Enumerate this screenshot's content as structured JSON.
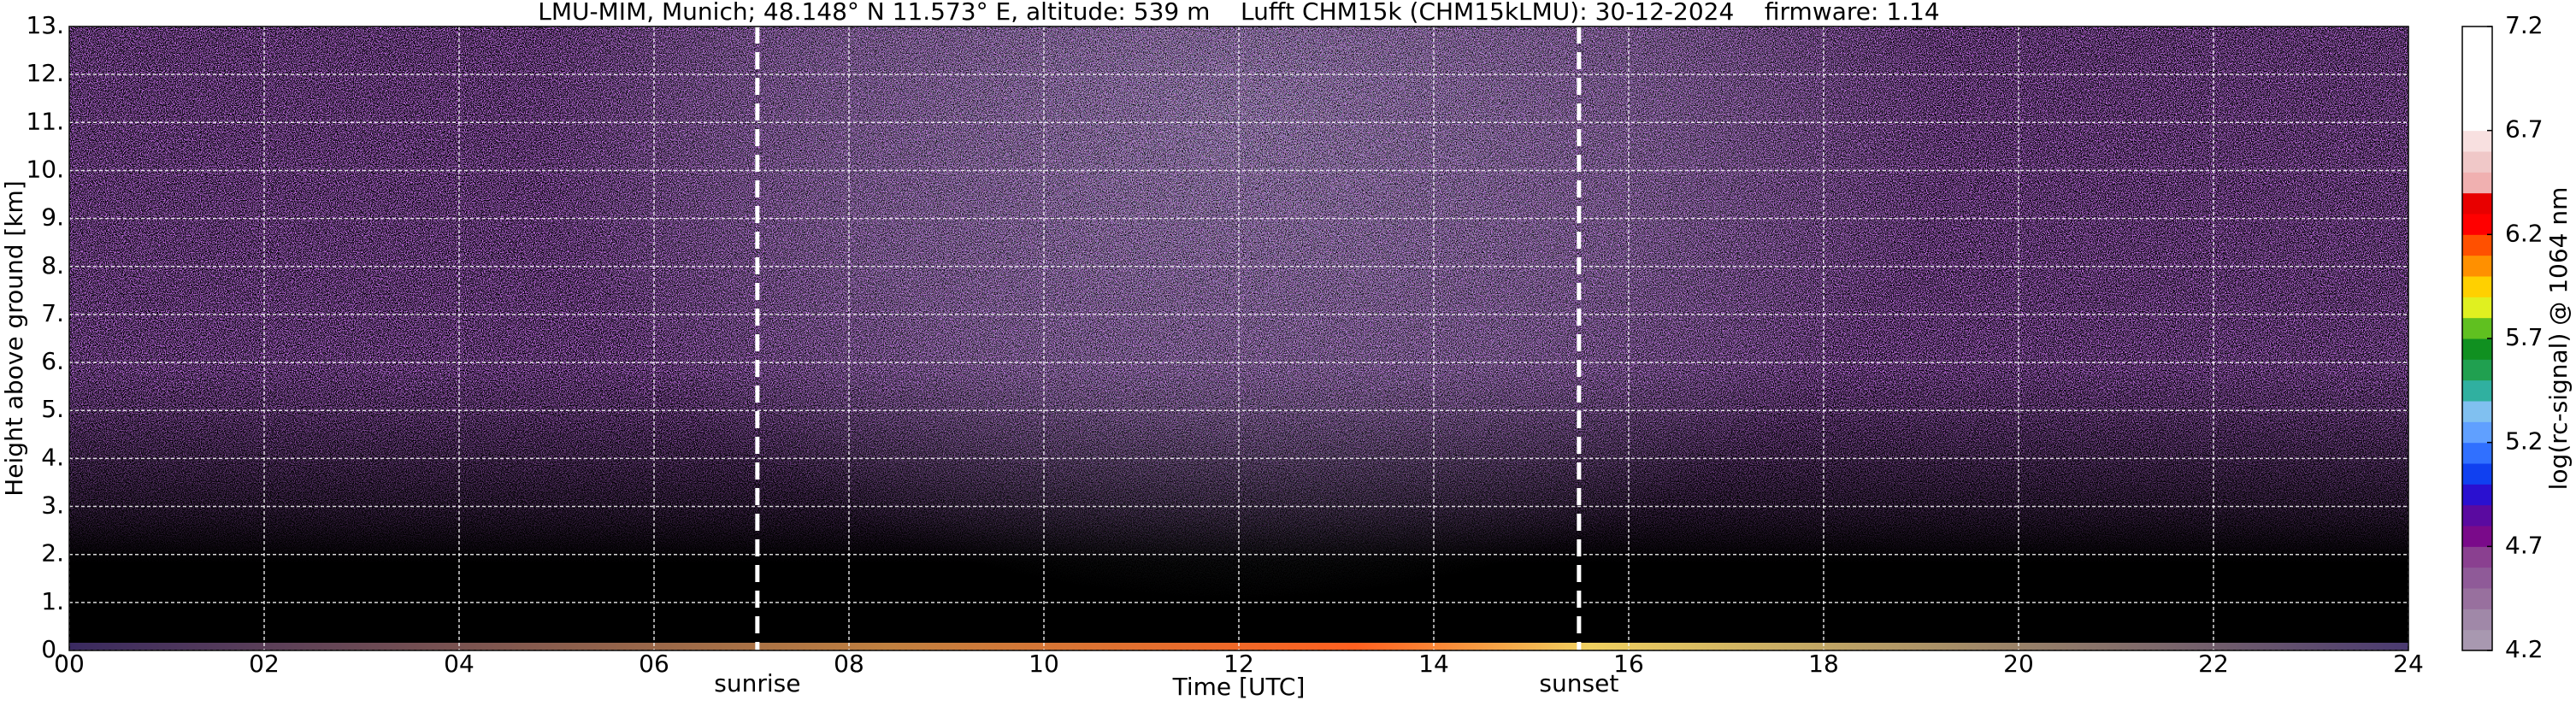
{
  "chart_data": {
    "type": "heatmap",
    "title": "LMU-MIM, Munich; 48.148° N 11.573° E, altitude: 539 m    Lufft CHM15k (CHM15kLMU): 30-12-2024    firmware: 1.14",
    "xlabel": "Time [UTC]",
    "ylabel": "Height above ground [km]",
    "xlim": [
      0,
      24
    ],
    "xticks": [
      {
        "value": 0,
        "label": "00"
      },
      {
        "value": 2,
        "label": "02"
      },
      {
        "value": 4,
        "label": "04"
      },
      {
        "value": 6,
        "label": "06"
      },
      {
        "value": 8,
        "label": "08"
      },
      {
        "value": 10,
        "label": "10"
      },
      {
        "value": 12,
        "label": "12"
      },
      {
        "value": 14,
        "label": "14"
      },
      {
        "value": 16,
        "label": "16"
      },
      {
        "value": 18,
        "label": "18"
      },
      {
        "value": 20,
        "label": "20"
      },
      {
        "value": 22,
        "label": "22"
      },
      {
        "value": 24,
        "label": "24"
      }
    ],
    "ylim": [
      0,
      13
    ],
    "yticks": [
      {
        "value": 0,
        "label": "0."
      },
      {
        "value": 1,
        "label": "1."
      },
      {
        "value": 2,
        "label": "2."
      },
      {
        "value": 3,
        "label": "3."
      },
      {
        "value": 4,
        "label": "4."
      },
      {
        "value": 5,
        "label": "5."
      },
      {
        "value": 6,
        "label": "6."
      },
      {
        "value": 7,
        "label": "7."
      },
      {
        "value": 8,
        "label": "8."
      },
      {
        "value": 9,
        "label": "9."
      },
      {
        "value": 10,
        "label": "10."
      },
      {
        "value": 11,
        "label": "11."
      },
      {
        "value": 12,
        "label": "12."
      },
      {
        "value": 13,
        "label": "13."
      }
    ],
    "grid": true,
    "annotations": [
      {
        "text": "sunrise",
        "x": 7.06
      },
      {
        "text": "sunset",
        "x": 15.49
      }
    ],
    "colorbar": {
      "label": "log(rc-signal) @ 1064 nm",
      "lim": [
        4.2,
        7.2
      ],
      "ticks": [
        4.2,
        4.7,
        5.2,
        5.7,
        6.2,
        6.7,
        7.2
      ],
      "colors": [
        "#a898b0",
        "#a088a8",
        "#98709e",
        "#8f5a98",
        "#8a4090",
        "#7a0a8a",
        "#5a0aa0",
        "#2a10d0",
        "#1040f0",
        "#3070ff",
        "#60a0ff",
        "#80c0f0",
        "#30b0a0",
        "#20a050",
        "#109020",
        "#60c020",
        "#e0f020",
        "#ffd000",
        "#ff9000",
        "#ff5000",
        "#ff0000",
        "#e80000",
        "#f0b0b0",
        "#f0c8c8",
        "#f8e0e0",
        "#ffffff",
        "#ffffff",
        "#ffffff",
        "#ffffff",
        "#ffffff"
      ]
    }
  }
}
